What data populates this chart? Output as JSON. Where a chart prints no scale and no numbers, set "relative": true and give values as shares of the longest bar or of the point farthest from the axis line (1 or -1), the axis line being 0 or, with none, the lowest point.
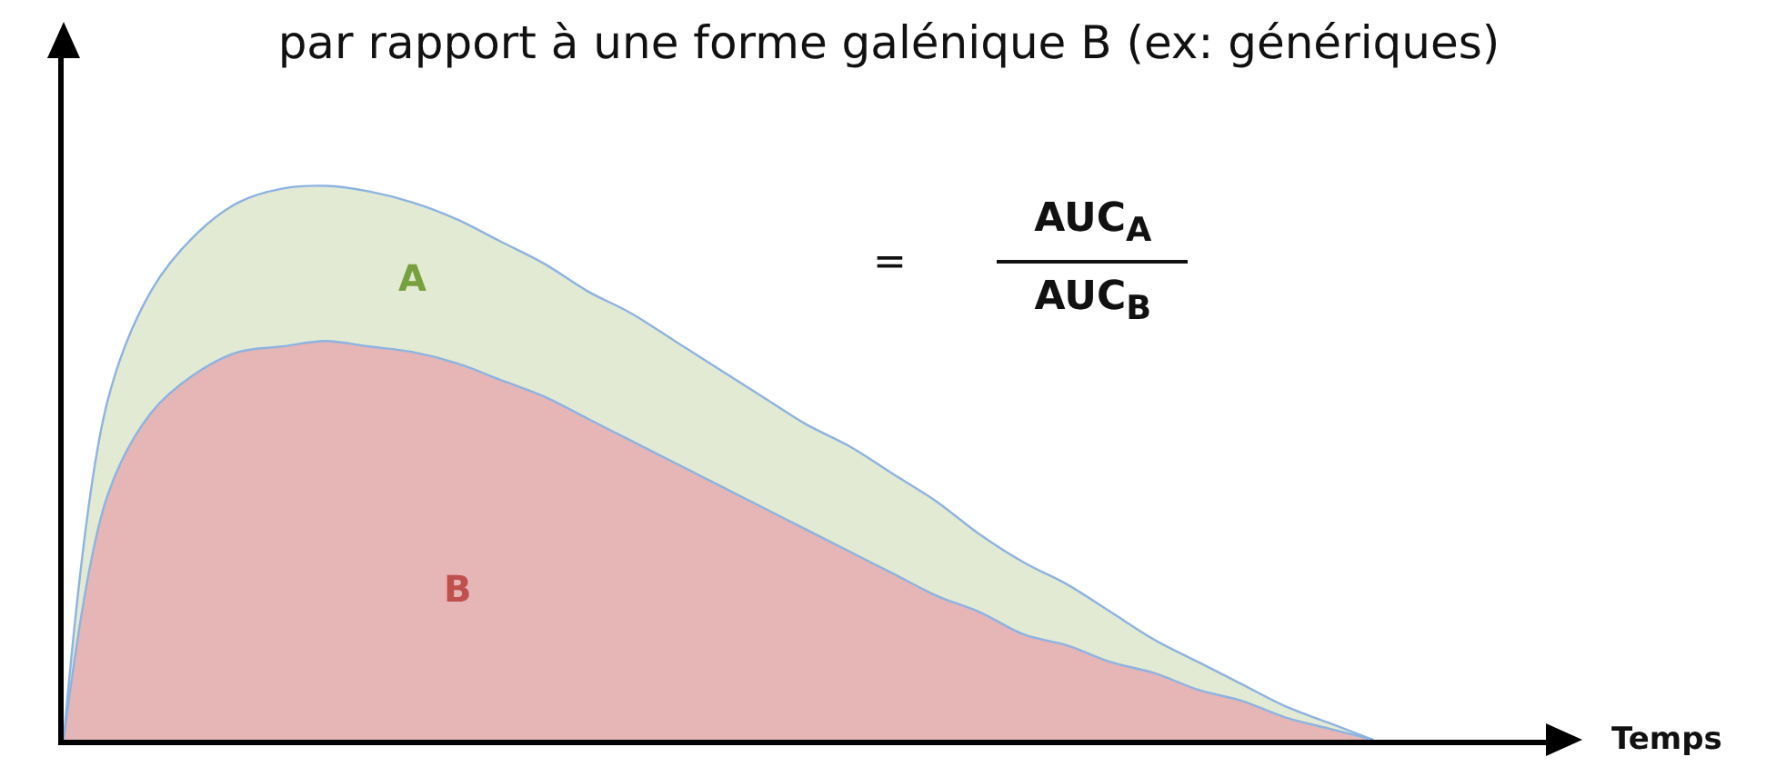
{
  "chart_data": {
    "type": "area",
    "relative": true,
    "title": "par rapport à une forme galénique B (ex: génériques)",
    "annotations": [
      "=",
      "AUC$_{A}$",
      "AUC$_{B}$",
      "Temps"
    ],
    "categories": [
      null,
      null,
      null,
      null,
      null,
      null,
      null,
      null,
      null,
      null,
      null,
      null,
      null,
      null,
      null,
      null,
      null,
      null,
      null,
      null,
      null,
      null,
      null,
      null,
      null,
      null,
      null,
      null,
      null,
      null,
      null
    ],
    "series": [
      {
        "name": "B",
        "color": "#e6b5b5",
        "values": [
          0,
          0.44,
          0.59,
          0.66,
          0.7,
          0.71,
          0.72,
          0.71,
          0.7,
          0.68,
          0.65,
          0.62,
          0.58,
          0.54,
          0.5,
          0.46,
          0.42,
          0.38,
          0.34,
          0.3,
          0.26,
          0.23,
          0.19,
          0.17,
          0.14,
          0.12,
          0.09,
          0.07,
          0.04,
          0.02,
          0
        ]
      },
      {
        "name": "A",
        "color": "#e3ead3",
        "values": [
          0,
          0.61,
          0.81,
          0.91,
          0.97,
          0.995,
          1.0,
          0.99,
          0.97,
          0.94,
          0.9,
          0.86,
          0.81,
          0.77,
          0.72,
          0.67,
          0.62,
          0.57,
          0.53,
          0.48,
          0.43,
          0.37,
          0.32,
          0.28,
          0.23,
          0.18,
          0.14,
          0.1,
          0.06,
          0.03,
          0
        ]
      }
    ],
    "legend": false,
    "grid": false,
    "tick_labels": false
  }
}
